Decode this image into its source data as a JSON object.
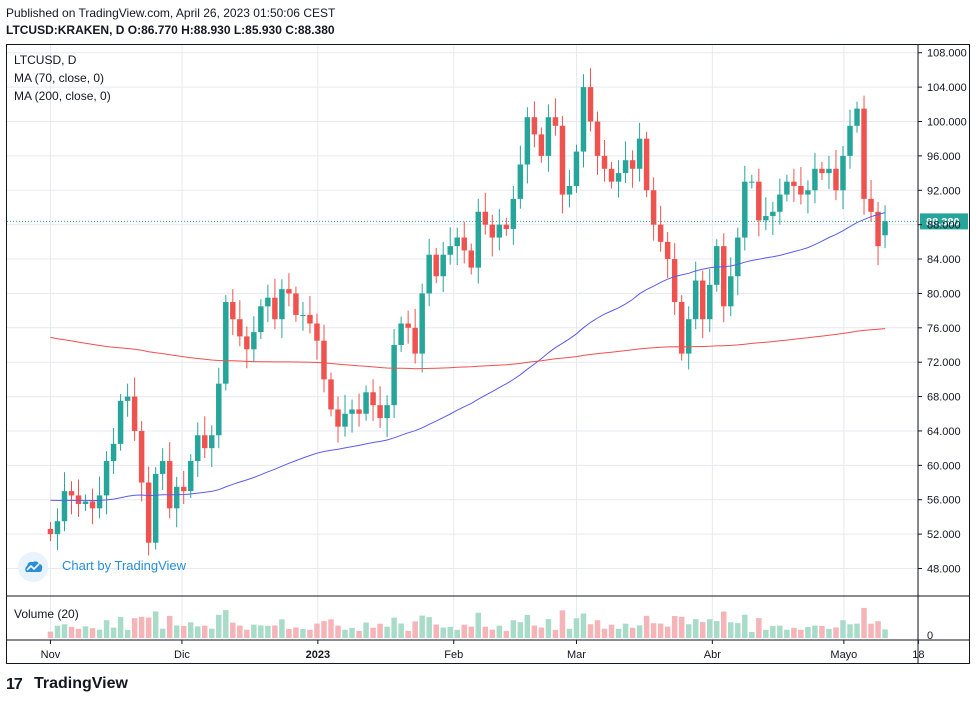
{
  "header": {
    "published": "Published on TradingView.com, April 26, 2023 01:50:06 CEST",
    "ohlc": "LTCUSD:KRAKEN, D  O:86.770  H:88.930  L:85.930  C:88.380"
  },
  "legend": {
    "symbol": "LTCUSD, D",
    "ma70": "MA (70, close, 0)",
    "ma200": "MA (200, close, 0)",
    "volume": "Volume (20)"
  },
  "watermark": {
    "text": "Chart by TradingView"
  },
  "footer": {
    "brand": "TradingView",
    "logo": "17"
  },
  "colors": {
    "up": "#26a69a",
    "down": "#ef5350",
    "ma70": "#5b5bf0",
    "ma200": "#f0504f",
    "price_line": "#26a69a",
    "up_volume": "#a8dcc9",
    "down_volume": "#f4b4b8"
  },
  "chart_data": {
    "type": "candlestick",
    "symbol": "LTCUSD",
    "interval": "D",
    "last_price": "88.380",
    "y_ticks": [
      "108.000",
      "104.000",
      "100.000",
      "96.000",
      "92.000",
      "88.000",
      "84.000",
      "80.000",
      "76.000",
      "72.000",
      "68.000",
      "64.000",
      "60.000",
      "56.000",
      "52.000",
      "48.000"
    ],
    "y_range": [
      44.8,
      108.9
    ],
    "x_ticks": [
      "Nov",
      "Dic",
      "2023",
      "Feb",
      "Mar",
      "Abr",
      "Mayo",
      "18"
    ],
    "x_tick_dates": [
      "2022-11-01",
      "2022-12-01",
      "2023-01-01",
      "2023-02-01",
      "2023-03-01",
      "2023-04-01",
      "2023-05-01",
      "2023-05-18"
    ],
    "volume_zero_label": "0",
    "closes": [
      52.0,
      53.5,
      57.0,
      56.5,
      55.5,
      55.8,
      55.0,
      56.5,
      60.5,
      62.5,
      67.5,
      68.0,
      64.0,
      58.0,
      51.0,
      59.0,
      60.5,
      55.0,
      57.5,
      57.0,
      60.5,
      63.5,
      62.0,
      63.5,
      69.5,
      79.0,
      77.0,
      75.0,
      73.5,
      75.5,
      78.5,
      79.5,
      77.0,
      80.5,
      80.0,
      77.5,
      77.5,
      76.5,
      74.5,
      70.0,
      66.5,
      64.5,
      66.0,
      66.5,
      66.0,
      68.5,
      67.0,
      65.5,
      67.0,
      74.0,
      76.5,
      76.0,
      73.0,
      80.0,
      84.5,
      82.0,
      84.5,
      85.5,
      86.5,
      85.0,
      83.0,
      89.5,
      88.0,
      86.5,
      88.0,
      87.5,
      91.0,
      95.0,
      100.5,
      98.5,
      96.0,
      100.5,
      99.5,
      91.5,
      92.5,
      96.5,
      104.0,
      100.0,
      96.0,
      94.5,
      93.0,
      94.0,
      95.5,
      94.5,
      98.0,
      92.0,
      88.0,
      86.0,
      84.0,
      79.0,
      73.0,
      77.0,
      81.5,
      77.0,
      81.0,
      85.5,
      78.5,
      82.0,
      86.5,
      93.0,
      93.0,
      88.5,
      89.0,
      89.5,
      91.5,
      93.0,
      92.5,
      91.5,
      92.0,
      94.5,
      94.0,
      94.5,
      92.0,
      96.0,
      99.5,
      101.5,
      91.0,
      89.5,
      85.5,
      88.4
    ],
    "ma70_visible": "from 2022-11-01 through last bar",
    "ma200_visible": "from 2022-11-01 through last bar"
  }
}
